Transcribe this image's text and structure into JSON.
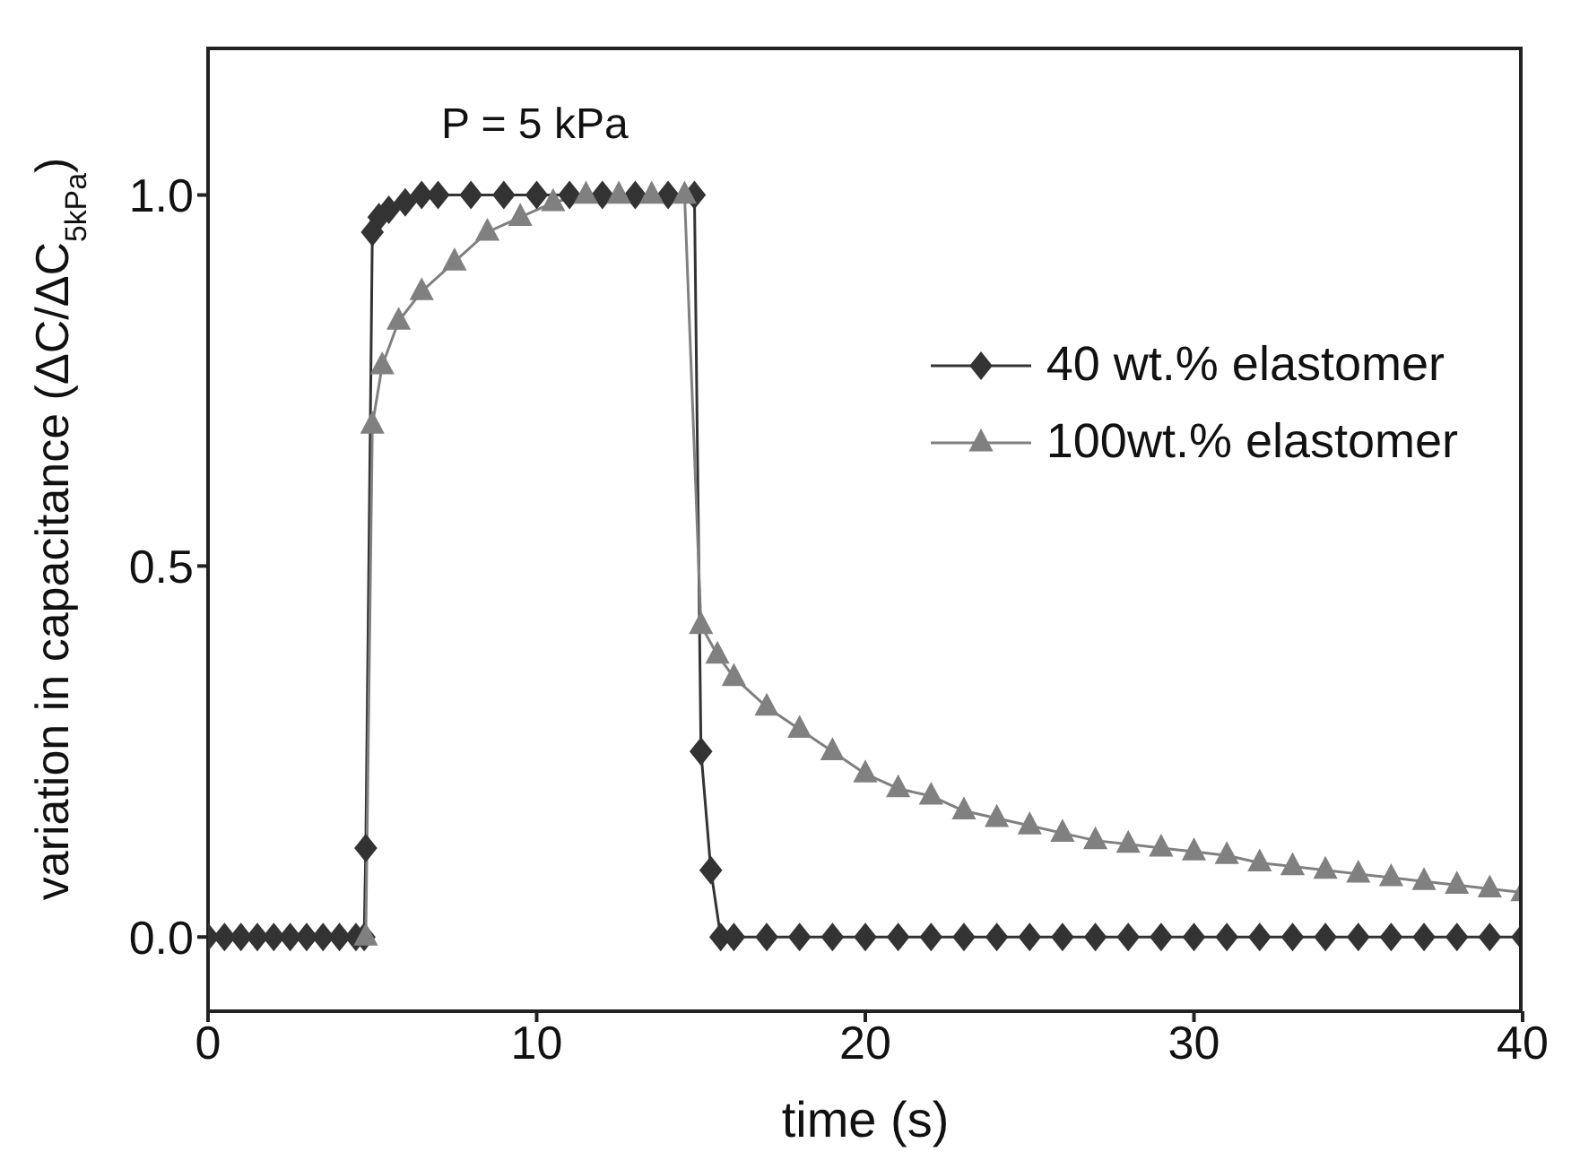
{
  "chart_data": {
    "type": "line",
    "xlabel": "time (s)",
    "ylabel": "variation in capacitance (ΔC/ΔC$_{5kPa}$)",
    "annotations": [
      "P = 5 kPa"
    ],
    "xlim": [
      0,
      40
    ],
    "xticks": [
      0,
      10,
      20,
      30,
      40
    ],
    "ylim": [
      -0.1,
      1.2
    ],
    "yticks": [
      {
        "value": 0,
        "label": "0.0"
      },
      {
        "value": 0.5,
        "label": "0.5"
      },
      {
        "value": 1,
        "label": "1.0"
      }
    ],
    "grid": false,
    "legend": "right",
    "line_style": "solid",
    "series": [
      {
        "name": "40 wt.% elastomer",
        "color": "#333333",
        "marker": "diamond",
        "x": [
          0,
          0.5,
          1,
          1.5,
          2,
          2.5,
          3,
          3.5,
          4,
          4.5,
          4.75,
          4.8,
          5.0,
          5.2,
          5.5,
          6,
          6.5,
          7,
          8,
          9,
          10,
          11,
          12,
          13,
          14,
          14.8,
          15.0,
          15.3,
          15.6,
          16,
          17,
          18,
          19,
          20,
          21,
          22,
          23,
          24,
          25,
          26,
          27,
          28,
          29,
          30,
          31,
          32,
          33,
          34,
          35,
          36,
          37,
          38,
          39,
          40
        ],
        "values": [
          0,
          0,
          0,
          0,
          0,
          0,
          0,
          0,
          0,
          0,
          0,
          0.12,
          0.95,
          0.97,
          0.98,
          0.99,
          1.0,
          1.0,
          1.0,
          1.0,
          1.0,
          1.0,
          1.0,
          1.0,
          1.0,
          1.0,
          0.25,
          0.09,
          0,
          0,
          0,
          0,
          0,
          0,
          0,
          0,
          0,
          0,
          0,
          0,
          0,
          0,
          0,
          0,
          0,
          0,
          0,
          0,
          0,
          0,
          0,
          0,
          0,
          0
        ]
      },
      {
        "name": "100wt.% elastomer",
        "color": "#808080",
        "marker": "triangle",
        "x": [
          4.8,
          5.0,
          5.3,
          5.8,
          6.5,
          7.5,
          8.5,
          9.5,
          10.5,
          11.5,
          12.5,
          13.5,
          14.5,
          15.0,
          15.5,
          16,
          17,
          18,
          19,
          20,
          21,
          22,
          23,
          24,
          25,
          26,
          27,
          28,
          29,
          30,
          31,
          32,
          33,
          34,
          35,
          36,
          37,
          38,
          39,
          40
        ],
        "values": [
          0,
          0.69,
          0.77,
          0.83,
          0.87,
          0.91,
          0.95,
          0.97,
          0.99,
          1.0,
          1.0,
          1.0,
          1.0,
          0.42,
          0.38,
          0.35,
          0.31,
          0.28,
          0.25,
          0.22,
          0.2,
          0.19,
          0.17,
          0.16,
          0.15,
          0.14,
          0.13,
          0.125,
          0.12,
          0.115,
          0.11,
          0.1,
          0.095,
          0.09,
          0.085,
          0.08,
          0.075,
          0.07,
          0.065,
          0.06
        ]
      }
    ]
  }
}
